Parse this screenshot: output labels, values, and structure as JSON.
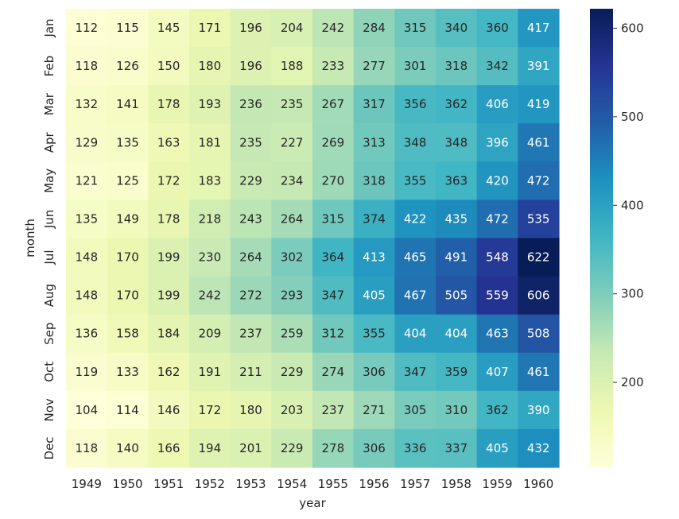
{
  "chart_data": {
    "type": "heatmap",
    "title": "",
    "xlabel": "year",
    "ylabel": "month",
    "x": [
      "1949",
      "1950",
      "1951",
      "1952",
      "1953",
      "1954",
      "1955",
      "1956",
      "1957",
      "1958",
      "1959",
      "1960"
    ],
    "y": [
      "Jan",
      "Feb",
      "Mar",
      "Apr",
      "May",
      "Jun",
      "Jul",
      "Aug",
      "Sep",
      "Oct",
      "Nov",
      "Dec"
    ],
    "values": [
      [
        112,
        115,
        145,
        171,
        196,
        204,
        242,
        284,
        315,
        340,
        360,
        417
      ],
      [
        118,
        126,
        150,
        180,
        196,
        188,
        233,
        277,
        301,
        318,
        342,
        391
      ],
      [
        132,
        141,
        178,
        193,
        236,
        235,
        267,
        317,
        356,
        362,
        406,
        419
      ],
      [
        129,
        135,
        163,
        181,
        235,
        227,
        269,
        313,
        348,
        348,
        396,
        461
      ],
      [
        121,
        125,
        172,
        183,
        229,
        234,
        270,
        318,
        355,
        363,
        420,
        472
      ],
      [
        135,
        149,
        178,
        218,
        243,
        264,
        315,
        374,
        422,
        435,
        472,
        535
      ],
      [
        148,
        170,
        199,
        230,
        264,
        302,
        364,
        413,
        465,
        491,
        548,
        622
      ],
      [
        148,
        170,
        199,
        242,
        272,
        293,
        347,
        405,
        467,
        505,
        559,
        606
      ],
      [
        136,
        158,
        184,
        209,
        237,
        259,
        312,
        355,
        404,
        404,
        463,
        508
      ],
      [
        119,
        133,
        162,
        191,
        211,
        229,
        274,
        306,
        347,
        359,
        407,
        461
      ],
      [
        104,
        114,
        146,
        172,
        180,
        203,
        237,
        271,
        305,
        310,
        362,
        390
      ],
      [
        118,
        140,
        166,
        194,
        201,
        229,
        278,
        306,
        336,
        337,
        405,
        432
      ]
    ],
    "annotated": true,
    "grid": false,
    "colormap": "YlGnBu",
    "colorbar": {
      "range": [
        104,
        622
      ],
      "ticks": [
        "200",
        "300",
        "400",
        "500",
        "600"
      ]
    }
  }
}
